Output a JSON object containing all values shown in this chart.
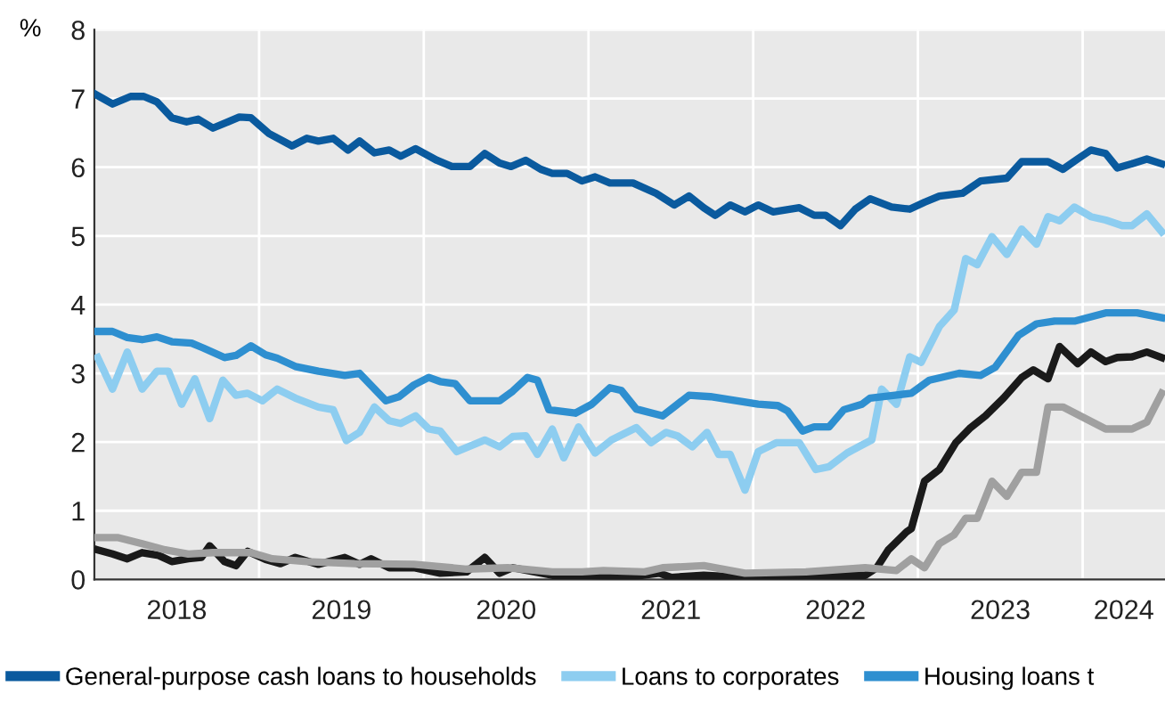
{
  "chart_data": {
    "type": "line",
    "ylabel": "%",
    "xlim": [
      2018,
      2024.5
    ],
    "ylim": [
      0,
      8
    ],
    "yticks": [
      0,
      1,
      2,
      3,
      4,
      5,
      6,
      7,
      8
    ],
    "xticks": [
      {
        "value": 2018.5,
        "label": "2018"
      },
      {
        "value": 2019.5,
        "label": "2019"
      },
      {
        "value": 2020.5,
        "label": "2020"
      },
      {
        "value": 2021.5,
        "label": "2021"
      },
      {
        "value": 2022.5,
        "label": "2022"
      },
      {
        "value": 2023.5,
        "label": "2023"
      },
      {
        "value": 2024.25,
        "label": "2024"
      },
      {
        "value": 2019,
        "label": null
      },
      {
        "value": 2020,
        "label": null
      },
      {
        "value": 2021,
        "label": null
      },
      {
        "value": 2022,
        "label": null
      },
      {
        "value": 2023,
        "label": null
      },
      {
        "value": 2024,
        "label": null
      }
    ],
    "grid": true,
    "legend": "bottom",
    "marker": "none",
    "line_style": "solid",
    "series": [
      {
        "name": "General-purpose cash loans to households",
        "color": "#0a5a9e",
        "x": [
          2018.0,
          2018.11,
          2018.22,
          2018.3,
          2018.38,
          2018.47,
          2018.56,
          2018.63,
          2018.72,
          2018.81,
          2018.88,
          2018.95,
          2019.06,
          2019.2,
          2019.29,
          2019.36,
          2019.45,
          2019.54,
          2019.61,
          2019.7,
          2019.79,
          2019.86,
          2019.95,
          2020.08,
          2020.17,
          2020.28,
          2020.37,
          2020.46,
          2020.53,
          2020.62,
          2020.71,
          2020.78,
          2020.87,
          2020.96,
          2021.04,
          2021.13,
          2021.27,
          2021.41,
          2021.52,
          2021.61,
          2021.7,
          2021.77,
          2021.86,
          2021.95,
          2022.03,
          2022.12,
          2022.28,
          2022.37,
          2022.44,
          2022.53,
          2022.62,
          2022.71,
          2022.84,
          2022.95,
          2023.04,
          2023.13,
          2023.27,
          2023.38,
          2023.54,
          2023.63,
          2023.79,
          2023.88,
          2023.97,
          2024.05,
          2024.14,
          2024.21,
          2024.3,
          2024.39,
          2024.48
        ],
        "values": [
          7.07,
          6.92,
          7.03,
          7.03,
          6.95,
          6.72,
          6.66,
          6.7,
          6.57,
          6.66,
          6.73,
          6.72,
          6.49,
          6.31,
          6.42,
          6.38,
          6.42,
          6.25,
          6.38,
          6.21,
          6.25,
          6.16,
          6.27,
          6.1,
          6.01,
          6.01,
          6.2,
          6.06,
          6.01,
          6.1,
          5.97,
          5.91,
          5.91,
          5.8,
          5.86,
          5.77,
          5.77,
          5.62,
          5.45,
          5.58,
          5.41,
          5.3,
          5.45,
          5.35,
          5.45,
          5.35,
          5.41,
          5.3,
          5.3,
          5.15,
          5.39,
          5.54,
          5.42,
          5.39,
          5.49,
          5.58,
          5.62,
          5.8,
          5.84,
          6.08,
          6.08,
          5.97,
          6.12,
          6.25,
          6.2,
          5.99,
          6.05,
          6.12,
          6.05
        ]
      },
      {
        "name": "Loans to corporates",
        "color": "#8dcdf0",
        "x": [
          2018.02,
          2018.11,
          2018.2,
          2018.29,
          2018.38,
          2018.45,
          2018.53,
          2018.61,
          2018.7,
          2018.78,
          2018.86,
          2018.93,
          2019.02,
          2019.11,
          2019.22,
          2019.36,
          2019.45,
          2019.53,
          2019.61,
          2019.7,
          2019.79,
          2019.86,
          2019.95,
          2020.03,
          2020.1,
          2020.2,
          2020.37,
          2020.46,
          2020.54,
          2020.62,
          2020.69,
          2020.78,
          2020.85,
          2020.94,
          2021.04,
          2021.14,
          2021.29,
          2021.38,
          2021.47,
          2021.54,
          2021.63,
          2021.72,
          2021.79,
          2021.86,
          2021.95,
          2022.03,
          2022.14,
          2022.28,
          2022.38,
          2022.46,
          2022.57,
          2022.64,
          2022.72,
          2022.78,
          2022.87,
          2022.95,
          2023.02,
          2023.13,
          2023.22,
          2023.29,
          2023.36,
          2023.45,
          2023.54,
          2023.63,
          2023.72,
          2023.79,
          2023.86,
          2023.95,
          2024.05,
          2024.14,
          2024.24,
          2024.3,
          2024.39,
          2024.48
        ],
        "values": [
          3.23,
          2.77,
          3.31,
          2.77,
          3.03,
          3.03,
          2.55,
          2.92,
          2.34,
          2.9,
          2.68,
          2.71,
          2.6,
          2.77,
          2.64,
          2.51,
          2.47,
          2.02,
          2.14,
          2.51,
          2.31,
          2.27,
          2.38,
          2.19,
          2.16,
          1.86,
          2.03,
          1.93,
          2.08,
          2.09,
          1.82,
          2.19,
          1.77,
          2.22,
          1.84,
          2.03,
          2.21,
          1.99,
          2.14,
          2.09,
          1.93,
          2.14,
          1.82,
          1.82,
          1.3,
          1.86,
          1.99,
          1.99,
          1.6,
          1.64,
          1.84,
          1.93,
          2.03,
          2.77,
          2.55,
          3.24,
          3.16,
          3.68,
          3.92,
          4.67,
          4.58,
          4.99,
          4.73,
          5.1,
          4.88,
          5.28,
          5.22,
          5.42,
          5.28,
          5.23,
          5.15,
          5.15,
          5.32,
          5.06
        ]
      },
      {
        "name": "Housing loans t",
        "color": "#2e8fd0",
        "x": [
          2018.02,
          2018.11,
          2018.2,
          2018.29,
          2018.38,
          2018.47,
          2018.59,
          2018.66,
          2018.79,
          2018.86,
          2018.95,
          2019.04,
          2019.11,
          2019.22,
          2019.36,
          2019.52,
          2019.61,
          2019.77,
          2019.85,
          2019.94,
          2020.03,
          2020.1,
          2020.19,
          2020.28,
          2020.46,
          2020.54,
          2020.63,
          2020.69,
          2020.76,
          2020.92,
          2021.02,
          2021.13,
          2021.2,
          2021.29,
          2021.45,
          2021.61,
          2021.74,
          2022.03,
          2022.15,
          2022.21,
          2022.3,
          2022.37,
          2022.46,
          2022.55,
          2022.66,
          2022.71,
          2022.86,
          2022.96,
          2023.07,
          2023.25,
          2023.38,
          2023.47,
          2023.61,
          2023.72,
          2023.83,
          2023.95,
          2024.14,
          2024.33,
          2024.48
        ],
        "values": [
          3.61,
          3.61,
          3.52,
          3.49,
          3.53,
          3.46,
          3.44,
          3.37,
          3.23,
          3.26,
          3.4,
          3.27,
          3.22,
          3.1,
          3.03,
          2.97,
          3.0,
          2.6,
          2.66,
          2.83,
          2.94,
          2.88,
          2.85,
          2.6,
          2.6,
          2.74,
          2.94,
          2.9,
          2.47,
          2.42,
          2.55,
          2.79,
          2.75,
          2.48,
          2.38,
          2.68,
          2.66,
          2.55,
          2.53,
          2.45,
          2.16,
          2.22,
          2.22,
          2.47,
          2.55,
          2.64,
          2.68,
          2.71,
          2.9,
          3.0,
          2.97,
          3.09,
          3.55,
          3.72,
          3.76,
          3.76,
          3.88,
          3.88,
          3.81
        ]
      },
      {
        "color": "#1a1a1a",
        "x": [
          2018.02,
          2018.11,
          2018.2,
          2018.29,
          2018.39,
          2018.47,
          2018.57,
          2018.65,
          2018.7,
          2018.79,
          2018.86,
          2018.93,
          2019.04,
          2019.13,
          2019.22,
          2019.36,
          2019.52,
          2019.61,
          2019.68,
          2019.79,
          2019.94,
          2020.1,
          2020.26,
          2020.37,
          2020.46,
          2020.54,
          2020.63,
          2020.78,
          2020.96,
          2021.02,
          2021.23,
          2021.43,
          2021.5,
          2021.7,
          2021.95,
          2022.32,
          2022.68,
          2022.75,
          2022.82,
          2022.93,
          2022.96,
          2023.04,
          2023.13,
          2023.23,
          2023.32,
          2023.41,
          2023.52,
          2023.63,
          2023.7,
          2023.79,
          2023.86,
          2023.97,
          2024.05,
          2024.14,
          2024.21,
          2024.3,
          2024.39,
          2024.48
        ],
        "values": [
          0.43,
          0.37,
          0.3,
          0.39,
          0.35,
          0.26,
          0.3,
          0.32,
          0.49,
          0.26,
          0.2,
          0.41,
          0.29,
          0.23,
          0.32,
          0.22,
          0.32,
          0.22,
          0.3,
          0.17,
          0.17,
          0.09,
          0.11,
          0.32,
          0.09,
          0.17,
          0.13,
          0.06,
          0.06,
          0.06,
          0.03,
          0.09,
          0.03,
          0.06,
          0.03,
          0.06,
          0.06,
          0.17,
          0.43,
          0.69,
          0.74,
          1.43,
          1.6,
          1.99,
          2.21,
          2.38,
          2.64,
          2.94,
          3.05,
          2.92,
          3.39,
          3.14,
          3.31,
          3.17,
          3.23,
          3.24,
          3.31,
          3.23
        ]
      },
      {
        "color": "#a0a0a0",
        "x": [
          2018.02,
          2018.14,
          2018.29,
          2018.43,
          2018.57,
          2018.72,
          2018.95,
          2019.08,
          2019.29,
          2019.58,
          2019.94,
          2020.26,
          2020.51,
          2020.78,
          2020.96,
          2021.09,
          2021.34,
          2021.45,
          2021.7,
          2021.95,
          2022.32,
          2022.68,
          2022.87,
          2022.96,
          2023.04,
          2023.13,
          2023.22,
          2023.29,
          2023.36,
          2023.45,
          2023.54,
          2023.63,
          2023.72,
          2023.79,
          2023.88,
          2024.14,
          2024.3,
          2024.39,
          2024.48
        ],
        "values": [
          0.61,
          0.61,
          0.52,
          0.43,
          0.37,
          0.39,
          0.39,
          0.3,
          0.26,
          0.23,
          0.22,
          0.15,
          0.17,
          0.11,
          0.11,
          0.13,
          0.11,
          0.17,
          0.2,
          0.09,
          0.11,
          0.17,
          0.13,
          0.3,
          0.17,
          0.52,
          0.65,
          0.89,
          0.89,
          1.43,
          1.21,
          1.56,
          1.56,
          2.51,
          2.51,
          2.19,
          2.19,
          2.29,
          2.71
        ]
      }
    ]
  }
}
